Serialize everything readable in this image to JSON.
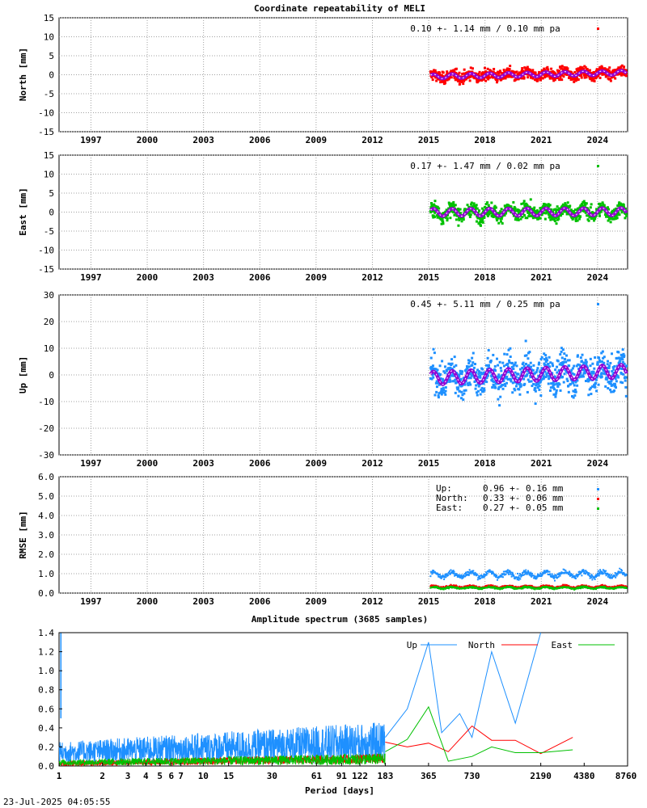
{
  "page_title": "Coordinate repeatability of MELI",
  "timestamp": "23-Jul-2025 04:05:55",
  "colors": {
    "north": "#ff0000",
    "east": "#00c000",
    "up": "#1e90ff",
    "fit": "#9400d3",
    "white": "#ffffff"
  },
  "chart_data": [
    {
      "type": "scatter",
      "id": "north",
      "ylabel": "North [mm]",
      "ylim": [
        -15,
        15
      ],
      "yticks": [
        -15,
        -10,
        -5,
        0,
        5,
        10,
        15
      ],
      "xlim": [
        1995.3,
        2025.6
      ],
      "xticks": [
        1997,
        2000,
        2003,
        2006,
        2009,
        2012,
        2015,
        2018,
        2021,
        2024
      ],
      "grid": true,
      "stat_label": "0.10 +- 1.14 mm /  0.10 mm pa",
      "series": [
        {
          "data_start": 2015.1,
          "data_end": 2025.55,
          "mean": 0.0,
          "spread": 1.14,
          "trend_pa": 0.1,
          "annual_amp": 0.6
        }
      ]
    },
    {
      "type": "scatter",
      "id": "east",
      "ylabel": "East [mm]",
      "ylim": [
        -15,
        15
      ],
      "yticks": [
        -15,
        -10,
        -5,
        0,
        5,
        10,
        15
      ],
      "xlim": [
        1995.3,
        2025.6
      ],
      "xticks": [
        1997,
        2000,
        2003,
        2006,
        2009,
        2012,
        2015,
        2018,
        2021,
        2024
      ],
      "grid": true,
      "stat_label": "0.17 +- 1.47 mm /  0.02 mm pa",
      "series": [
        {
          "data_start": 2015.1,
          "data_end": 2025.55,
          "mean": 0.0,
          "spread": 1.47,
          "trend_pa": 0.02,
          "annual_amp": 1.0
        }
      ]
    },
    {
      "type": "scatter",
      "id": "up",
      "ylabel": "Up [mm]",
      "ylim": [
        -30,
        30
      ],
      "yticks": [
        -30,
        -20,
        -10,
        0,
        10,
        20,
        30
      ],
      "xlim": [
        1995.3,
        2025.6
      ],
      "xticks": [
        1997,
        2000,
        2003,
        2006,
        2009,
        2012,
        2015,
        2018,
        2021,
        2024
      ],
      "grid": true,
      "stat_label": "0.45 +- 5.11 mm /  0.25 mm pa",
      "series": [
        {
          "data_start": 2015.1,
          "data_end": 2025.55,
          "mean": 0.0,
          "spread": 5.11,
          "trend_pa": 0.25,
          "annual_amp": 2.5
        }
      ]
    },
    {
      "type": "scatter",
      "id": "rmse",
      "ylabel": "RMSE [mm]",
      "ylim": [
        0,
        6
      ],
      "yticks": [
        "0.0",
        "1.0",
        "2.0",
        "3.0",
        "4.0",
        "5.0",
        "6.0"
      ],
      "xlim": [
        1995.3,
        2025.6
      ],
      "xticks": [
        1997,
        2000,
        2003,
        2006,
        2009,
        2012,
        2015,
        2018,
        2021,
        2024
      ],
      "grid": true,
      "legend": [
        {
          "name": "Up:",
          "stats": "0.96 +- 0.16 mm"
        },
        {
          "name": "North:",
          "stats": "0.33 +- 0.06 mm"
        },
        {
          "name": "East:",
          "stats": "0.27 +- 0.05 mm"
        }
      ],
      "series": [
        {
          "name": "Up",
          "mean": 0.96,
          "spread": 0.16
        },
        {
          "name": "North",
          "mean": 0.33,
          "spread": 0.06
        },
        {
          "name": "East",
          "mean": 0.27,
          "spread": 0.05
        }
      ]
    },
    {
      "type": "line",
      "id": "spectrum",
      "title": "Amplitude spectrum (3685 samples)",
      "xlabel": "Period [days]",
      "xscale": "log",
      "xlim": [
        1,
        8760
      ],
      "xticks": [
        "1",
        "2",
        "3",
        "4",
        "5",
        "6",
        "7",
        "10",
        "15",
        "30",
        "61",
        "91",
        "122",
        "183",
        "365",
        "730",
        "2190",
        "4380",
        "8760"
      ],
      "ylim": [
        0,
        1.4
      ],
      "yticks": [
        "0.0",
        "0.2",
        "0.4",
        "0.6",
        "0.8",
        "1.0",
        "1.2",
        "1.4"
      ],
      "grid": false,
      "legend_position": "top-right",
      "series": [
        {
          "name": "Up",
          "x": [
            183,
            260,
            365,
            450,
            600,
            730,
            1000,
            1460,
            2190
          ],
          "y": [
            0.3,
            0.6,
            1.3,
            0.35,
            0.55,
            0.3,
            1.2,
            0.45,
            1.4
          ]
        },
        {
          "name": "North",
          "x": [
            183,
            260,
            365,
            500,
            730,
            1000,
            1460,
            2190,
            3650
          ],
          "y": [
            0.25,
            0.2,
            0.24,
            0.15,
            0.42,
            0.27,
            0.27,
            0.13,
            0.3
          ]
        },
        {
          "name": "East",
          "x": [
            183,
            260,
            365,
            500,
            730,
            1000,
            1460,
            2190,
            3650
          ],
          "y": [
            0.15,
            0.28,
            0.62,
            0.05,
            0.1,
            0.2,
            0.14,
            0.14,
            0.17
          ]
        }
      ]
    }
  ]
}
